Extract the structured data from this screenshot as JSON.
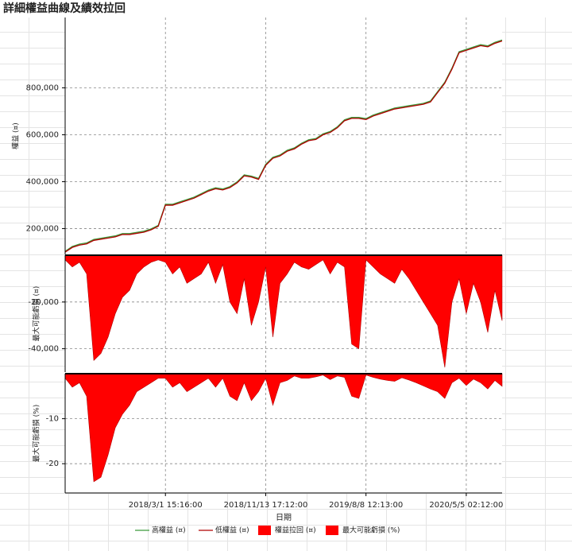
{
  "chart_data": [
    {
      "type": "line",
      "title": "詳細權益曲線及績效拉回",
      "ylabel": "權益 (¤)",
      "ylim": [
        90000,
        1100000
      ],
      "yticks": [
        {
          "value": 200000,
          "label": "200,000"
        },
        {
          "value": 400000,
          "label": "400,000"
        },
        {
          "value": 600000,
          "label": "600,000"
        },
        {
          "value": 800000,
          "label": "800,000"
        }
      ],
      "grid": true,
      "series": [
        {
          "name": "高權益 (¤)",
          "color": "#3a9a3a",
          "values": [
            103000,
            124000,
            134000,
            139000,
            154000,
            159000,
            164000,
            169000,
            179000,
            179000,
            184000,
            189000,
            199000,
            214000,
            304000,
            304000,
            314000,
            324000,
            334000,
            349000,
            364000,
            374000,
            369000,
            379000,
            399000,
            429000,
            424000,
            414000,
            474000,
            504000,
            514000,
            534000,
            544000,
            564000,
            579000,
            584000,
            604000,
            614000,
            634000,
            664000,
            674000,
            674000,
            669000,
            684000,
            694000,
            704000,
            714000,
            719000,
            724000,
            729000,
            734000,
            744000,
            784000,
            824000,
            884000,
            954000,
            964000,
            974000,
            984000,
            979000,
            994000,
            1004000
          ]
        },
        {
          "name": "低權益 (¤)",
          "color": "#b00000",
          "values": [
            100000,
            120000,
            130000,
            135000,
            150000,
            155000,
            160000,
            165000,
            175000,
            175000,
            180000,
            185000,
            195000,
            210000,
            300000,
            300000,
            310000,
            320000,
            330000,
            345000,
            360000,
            370000,
            365000,
            375000,
            395000,
            425000,
            420000,
            410000,
            470000,
            500000,
            510000,
            530000,
            540000,
            560000,
            575000,
            580000,
            600000,
            610000,
            630000,
            660000,
            670000,
            670000,
            665000,
            680000,
            690000,
            700000,
            710000,
            715000,
            720000,
            725000,
            730000,
            740000,
            780000,
            820000,
            880000,
            950000,
            960000,
            970000,
            980000,
            975000,
            990000,
            1000000
          ]
        }
      ]
    },
    {
      "type": "area",
      "ylabel": "最大可能虧損 (¤)",
      "ylim": [
        -50000,
        0
      ],
      "yticks": [
        {
          "value": -20000,
          "label": "-20,000"
        },
        {
          "value": -40000,
          "label": "-40,000"
        }
      ],
      "grid": true,
      "series": [
        {
          "name": "權益拉回 (¤)",
          "color": "#ff0000",
          "values": [
            -2000,
            -5000,
            -3000,
            -8000,
            -45000,
            -42000,
            -35000,
            -25000,
            -18000,
            -15000,
            -8000,
            -5000,
            -3000,
            -2000,
            -3000,
            -8000,
            -5000,
            -12000,
            -10000,
            -8000,
            -3000,
            -12000,
            -4000,
            -20000,
            -25000,
            -10000,
            -30000,
            -20000,
            -5000,
            -35000,
            -12000,
            -8000,
            -3000,
            -5000,
            -6000,
            -4000,
            -2000,
            -8000,
            -3000,
            -5000,
            -38000,
            -40000,
            -2000,
            -5000,
            -8000,
            -10000,
            -12000,
            -6000,
            -10000,
            -15000,
            -20000,
            -25000,
            -30000,
            -48000,
            -20000,
            -10000,
            -25000,
            -12000,
            -20000,
            -33000,
            -15000,
            -28000
          ]
        }
      ]
    },
    {
      "type": "area",
      "ylabel": "最大可能虧損 (%)",
      "xlabel": "日期",
      "ylim": [
        -26.5,
        0
      ],
      "yticks": [
        -10,
        -20
      ],
      "grid": true,
      "categories": [
        null,
        null,
        null,
        null,
        null,
        null,
        null,
        null,
        null,
        null,
        null,
        null,
        null,
        null,
        "2018/3/1 15:16:00",
        null,
        null,
        null,
        null,
        null,
        null,
        null,
        null,
        null,
        null,
        null,
        null,
        null,
        "2018/11/13 17:12:00",
        null,
        null,
        null,
        null,
        null,
        null,
        null,
        null,
        null,
        null,
        null,
        null,
        null,
        "2019/8/8 12:13:00",
        null,
        null,
        null,
        null,
        null,
        null,
        null,
        null,
        null,
        null,
        null,
        null,
        null,
        "2020/5/5 02:12:00",
        null,
        null,
        null,
        null,
        null
      ],
      "series": [
        {
          "name": "最大可能虧損 (%)",
          "color": "#ff0000",
          "values": [
            -1,
            -3,
            -2,
            -5,
            -24,
            -23,
            -18,
            -12,
            -9,
            -7,
            -4,
            -3,
            -2,
            -1,
            -1,
            -3,
            -2,
            -4,
            -3,
            -2,
            -1,
            -3,
            -1,
            -5,
            -6,
            -2,
            -6,
            -4,
            -1,
            -7,
            -2,
            -1.5,
            -0.5,
            -1,
            -1,
            -0.7,
            -0.3,
            -1.3,
            -0.5,
            -0.8,
            -5,
            -5.5,
            -0.3,
            -0.8,
            -1.2,
            -1.5,
            -1.7,
            -0.9,
            -1.4,
            -2,
            -2.7,
            -3.4,
            -4,
            -5.5,
            -2,
            -1,
            -2.6,
            -1.2,
            -2,
            -3.4,
            -1.5,
            -2.8
          ]
        }
      ]
    }
  ]
}
